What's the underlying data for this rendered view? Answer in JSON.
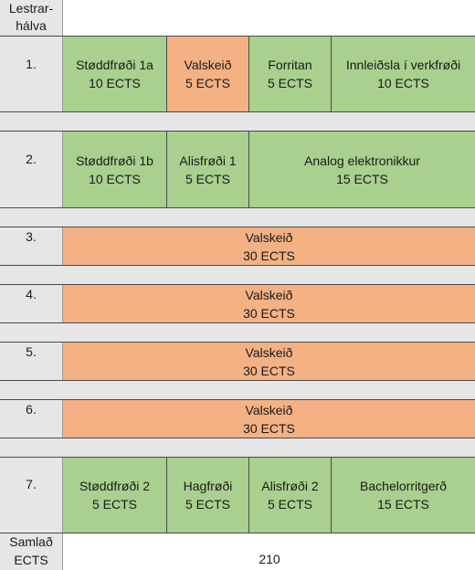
{
  "header": {
    "semester_label": "Lestrar-\nhálva"
  },
  "semesters": [
    {
      "label": "1.",
      "courses": [
        {
          "name": "Støddfrøði 1a",
          "credits": "10 ECTS",
          "color": "green"
        },
        {
          "name": "Valskeið",
          "credits": "5 ECTS",
          "color": "orange"
        },
        {
          "name": "Forritan",
          "credits": "5 ECTS",
          "color": "green"
        },
        {
          "name": "Innleiðsla í verkfrøði",
          "credits": "10 ECTS",
          "color": "green"
        }
      ]
    },
    {
      "label": "2.",
      "courses": [
        {
          "name": "Støddfrøði 1b",
          "credits": "10 ECTS",
          "color": "green"
        },
        {
          "name": "Alisfrøði 1",
          "credits": "5 ECTS",
          "color": "green"
        },
        {
          "name": "Analog elektronikkur",
          "credits": "15 ECTS",
          "color": "green"
        }
      ]
    },
    {
      "label": "3.",
      "courses": [
        {
          "name": "Valskeið",
          "credits": "30 ECTS",
          "color": "orange"
        }
      ]
    },
    {
      "label": "4.",
      "courses": [
        {
          "name": "Valskeið",
          "credits": "30 ECTS",
          "color": "orange"
        }
      ]
    },
    {
      "label": "5.",
      "courses": [
        {
          "name": "Valskeið",
          "credits": "30 ECTS",
          "color": "orange"
        }
      ]
    },
    {
      "label": "6.",
      "courses": [
        {
          "name": "Valskeið",
          "credits": "30 ECTS",
          "color": "orange"
        }
      ]
    },
    {
      "label": "7.",
      "courses": [
        {
          "name": "Støddfrøði 2",
          "credits": "5 ECTS",
          "color": "green"
        },
        {
          "name": "Hagfrøði",
          "credits": "5 ECTS",
          "color": "green"
        },
        {
          "name": "Alisfrøði 2",
          "credits": "5 ECTS",
          "color": "green"
        },
        {
          "name": "Bachelorritgerð",
          "credits": "15 ECTS",
          "color": "green"
        }
      ]
    }
  ],
  "total": {
    "label": "Samlað\nECTS",
    "value": "210"
  },
  "colors": {
    "green": "#a9d08e",
    "orange": "#f4b183",
    "gray": "#e6e6e6"
  }
}
